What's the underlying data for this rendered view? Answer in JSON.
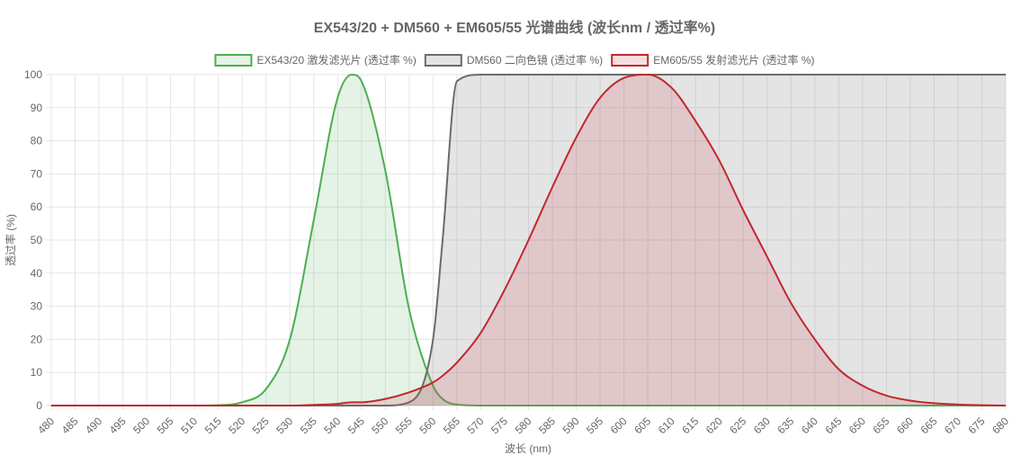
{
  "chart_data": {
    "type": "area",
    "title": "EX543/20 + DM560 + EM605/55 光谱曲线 (波长nm / 透过率%)",
    "xlabel": "波长 (nm)",
    "ylabel": "透过率 (%)",
    "xlim": [
      480,
      680
    ],
    "ylim": [
      0,
      100
    ],
    "x_tick_step": 5,
    "y_tick_step": 10,
    "grid": true,
    "legend_position": "top",
    "x": [
      480,
      485,
      490,
      495,
      500,
      505,
      510,
      515,
      520,
      525,
      530,
      535,
      540,
      543,
      545,
      550,
      555,
      560,
      562,
      565,
      570,
      575,
      580,
      585,
      590,
      595,
      600,
      605,
      610,
      615,
      620,
      625,
      630,
      635,
      640,
      645,
      650,
      655,
      660,
      665,
      670,
      675,
      680
    ],
    "series": [
      {
        "name": "EX543/20 激发滤光片 (透过率 %)",
        "color": "#4caf50",
        "fill": "rgba(76,175,80,0.15)",
        "values": [
          0,
          0,
          0,
          0,
          0,
          0,
          0,
          0.1,
          1,
          5,
          20,
          56,
          93,
          100,
          98,
          71,
          29,
          6,
          2,
          0.3,
          0,
          0,
          0,
          0,
          0,
          0,
          0,
          0,
          0,
          0,
          0,
          0,
          0,
          0,
          0,
          0,
          0,
          0,
          0,
          0,
          0,
          0,
          0
        ]
      },
      {
        "name": "DM560 二向色镜 (透过率 %)",
        "color": "#6b6b6b",
        "fill": "rgba(130,130,130,0.22)",
        "values": [
          0,
          0,
          0,
          0,
          0,
          0,
          0,
          0,
          0,
          0,
          0,
          0,
          0,
          0,
          0,
          0,
          1,
          20,
          50,
          98,
          100,
          100,
          100,
          100,
          100,
          100,
          100,
          100,
          100,
          100,
          100,
          100,
          100,
          100,
          100,
          100,
          100,
          100,
          100,
          100,
          100,
          100,
          100
        ]
      },
      {
        "name": "EM605/55 发射滤光片 (透过率 %)",
        "color": "#c0282d",
        "fill": "rgba(210,60,70,0.17)",
        "values": [
          0,
          0,
          0,
          0,
          0,
          0,
          0,
          0,
          0,
          0,
          0,
          0.2,
          0.5,
          1,
          1,
          2,
          4,
          7,
          9,
          13,
          22,
          35,
          50,
          66,
          81,
          93,
          99,
          100,
          96,
          86,
          74,
          59,
          45,
          31,
          20,
          11,
          6,
          3,
          1.5,
          0.7,
          0.3,
          0.1,
          0
        ]
      }
    ]
  }
}
